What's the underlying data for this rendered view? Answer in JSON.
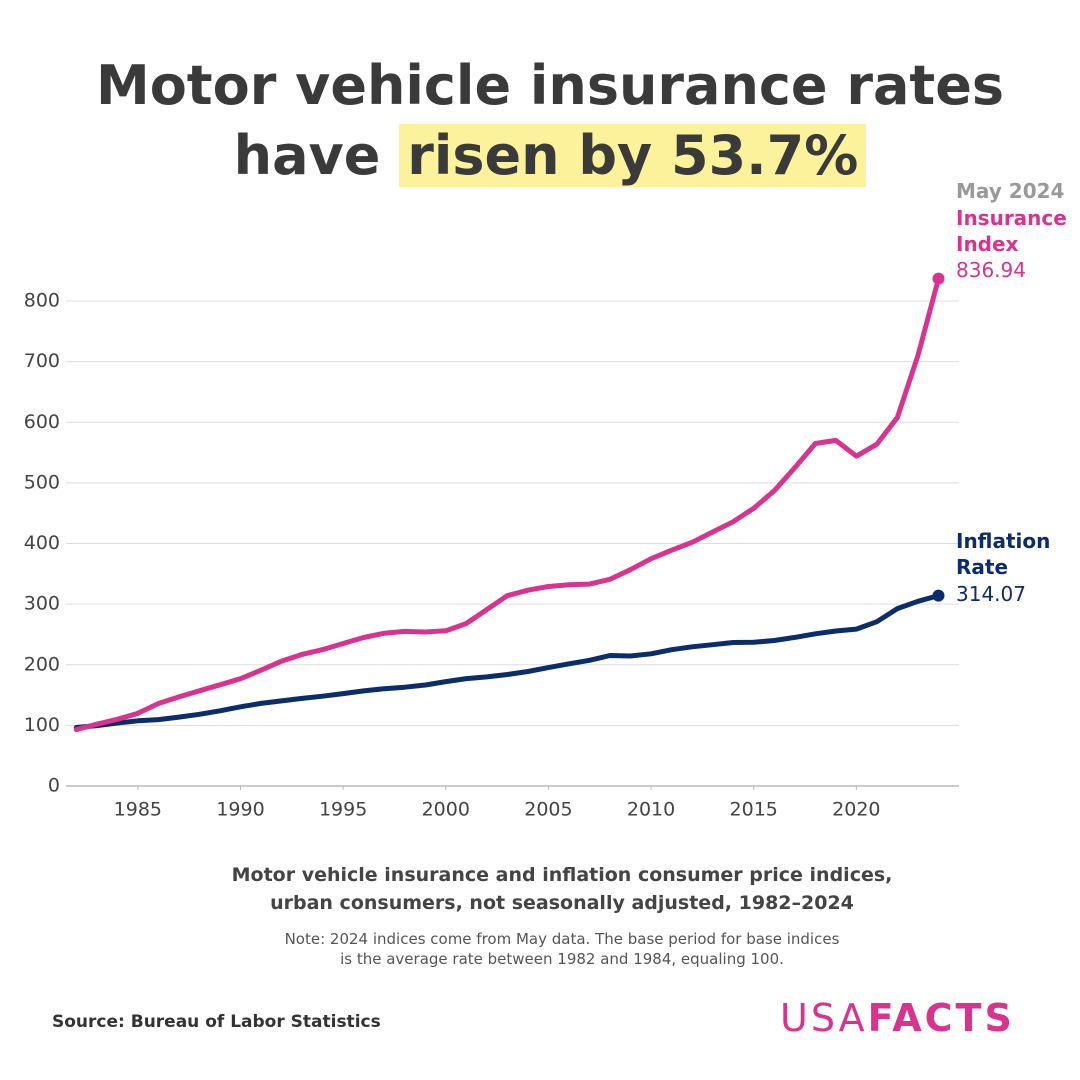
{
  "chart_data": {
    "type": "line",
    "title_line1": "Motor vehicle insurance rates",
    "title_line2_prefix": "have",
    "title_highlight": "risen by 53.7%",
    "annotation": "May 2024",
    "subtitle_line1": "Motor vehicle insurance and inflation consumer price indices,",
    "subtitle_line2": "urban consumers, not seasonally adjusted, 1982–2024",
    "note_line1": "Note: 2024 indices come from May data. The base period for base indices",
    "note_line2": "is the average rate between 1982 and 1984, equaling 100.",
    "source": "Source: Bureau of Labor Statistics",
    "logo_left": "USA",
    "logo_right": "FACTS",
    "x": [
      1982,
      1983,
      1984,
      1985,
      1986,
      1987,
      1988,
      1989,
      1990,
      1991,
      1992,
      1993,
      1994,
      1995,
      1996,
      1997,
      1998,
      1999,
      2000,
      2001,
      2002,
      2003,
      2004,
      2005,
      2006,
      2007,
      2008,
      2009,
      2010,
      2011,
      2012,
      2013,
      2014,
      2015,
      2016,
      2017,
      2018,
      2019,
      2020,
      2021,
      2022,
      2023,
      2024
    ],
    "series": [
      {
        "name": "Insurance Index",
        "color": "#d9338f",
        "values": [
          93,
          102,
          110,
          120,
          136,
          147,
          157,
          167,
          177,
          191,
          206,
          217,
          225,
          235,
          245,
          252,
          255,
          254,
          256,
          268,
          291,
          314,
          323,
          329,
          332,
          333,
          341,
          357,
          375,
          389,
          402,
          419,
          436,
          458,
          487,
          525,
          565,
          570,
          544,
          564,
          608,
          710,
          836.94
        ]
      },
      {
        "name": "Inflation Rate",
        "color": "#0b2d6b",
        "values": [
          96.5,
          99.6,
          103.9,
          107.6,
          109.6,
          113.6,
          118.3,
          124,
          130.7,
          136.2,
          140.3,
          144.5,
          148.2,
          152.4,
          156.9,
          160.5,
          163,
          166.6,
          172.2,
          177.1,
          179.9,
          184,
          188.9,
          195.3,
          201.6,
          207.3,
          215.3,
          214.5,
          218.1,
          224.9,
          229.6,
          233,
          236.7,
          237,
          240,
          245.1,
          251.1,
          255.7,
          258.8,
          271,
          292.7,
          304.7,
          314.07
        ]
      }
    ],
    "xlim": [
      1981.5,
      2025
    ],
    "xticks": [
      1985,
      1990,
      1995,
      2000,
      2005,
      2010,
      2015,
      2020
    ],
    "ylim": [
      0,
      800
    ],
    "yticks": [
      0,
      100,
      200,
      300,
      400,
      500,
      600,
      700,
      800
    ],
    "grid": true
  }
}
